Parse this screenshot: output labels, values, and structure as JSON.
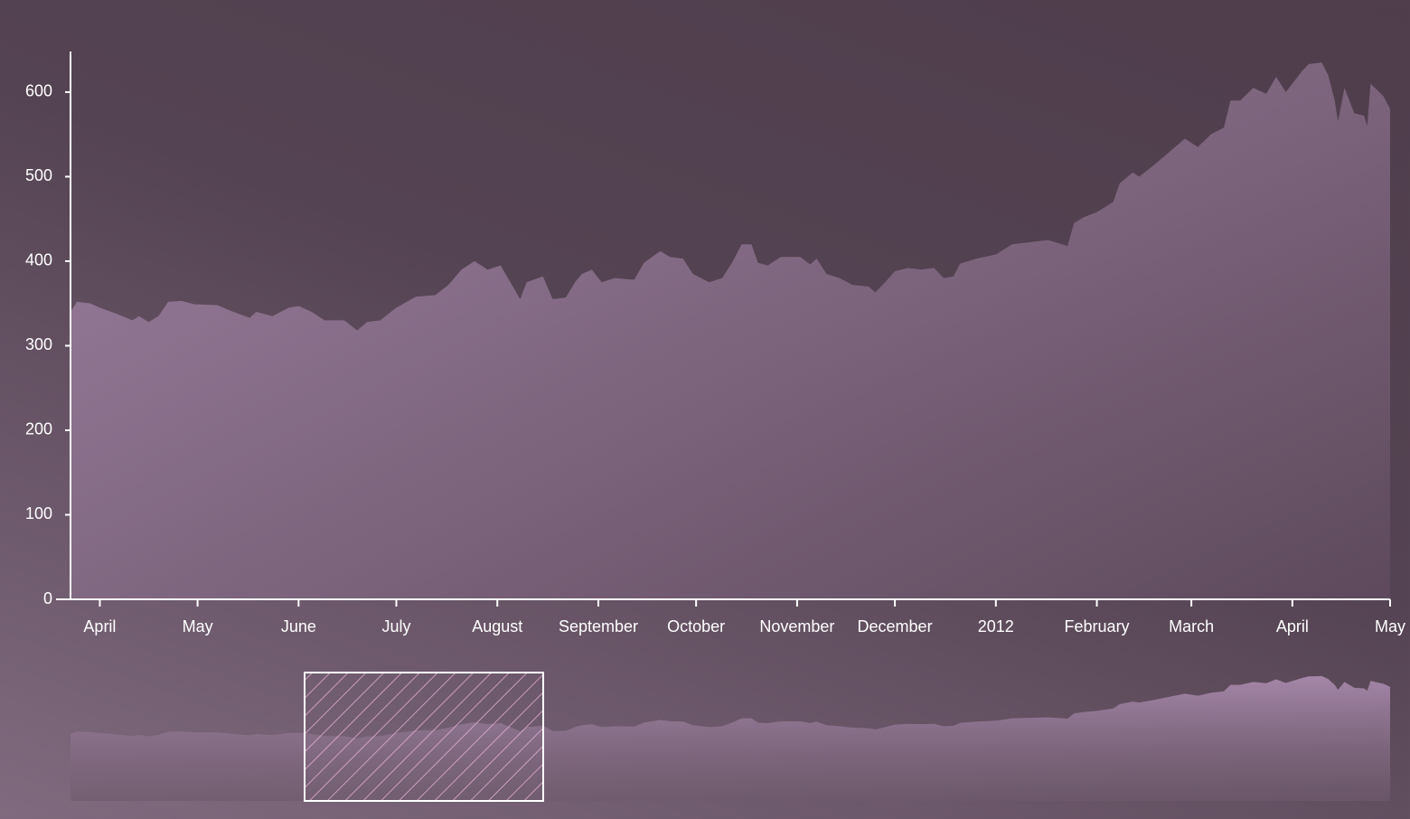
{
  "chart_data": {
    "type": "area",
    "x": [
      0,
      2,
      6,
      9,
      14,
      19,
      21,
      24,
      27,
      30,
      34,
      38,
      45,
      50,
      55,
      57,
      62,
      67,
      70,
      74,
      78,
      84,
      88,
      91,
      95,
      100,
      106,
      112,
      116,
      120,
      124,
      128,
      132,
      135,
      138,
      140,
      145,
      148,
      152,
      155,
      157,
      160,
      163,
      167,
      173,
      176,
      181,
      184,
      188,
      191,
      196,
      200,
      203,
      206,
      209,
      211,
      214,
      218,
      224,
      227,
      229,
      232,
      236,
      240,
      245,
      247,
      250,
      253,
      257,
      261,
      265,
      268,
      271,
      273,
      278,
      284,
      289,
      300,
      306,
      308,
      311,
      315,
      320,
      322,
      326,
      328,
      332,
      336,
      342,
      346,
      350,
      354,
      356,
      359,
      363,
      367,
      370,
      373,
      378,
      380,
      384,
      386,
      388,
      389,
      391,
      394,
      397,
      398,
      399,
      403,
      405
    ],
    "series": [
      {
        "color": "#a98aad",
        "values": [
          340,
          352,
          350,
          345,
          338,
          330,
          335,
          328,
          335,
          352,
          353,
          349,
          348,
          340,
          333,
          340,
          335,
          345,
          347,
          340,
          330,
          330,
          318,
          328,
          330,
          345,
          358,
          360,
          372,
          390,
          400,
          390,
          395,
          375,
          355,
          375,
          382,
          355,
          357,
          376,
          385,
          390,
          375,
          380,
          378,
          398,
          412,
          405,
          403,
          385,
          375,
          380,
          398,
          420,
          420,
          398,
          395,
          405,
          405,
          396,
          403,
          385,
          380,
          372,
          370,
          363,
          375,
          388,
          392,
          390,
          392,
          380,
          382,
          397,
          403,
          408,
          420,
          425,
          418,
          445,
          452,
          458,
          470,
          492,
          505,
          500,
          512,
          525,
          545,
          535,
          550,
          558,
          590,
          590,
          605,
          598,
          618,
          600,
          625,
          633,
          635,
          620,
          590,
          565,
          605,
          575,
          572,
          560,
          610,
          595,
          580
        ]
      }
    ],
    "xlim": [
      0,
      405
    ],
    "xticks": [
      {
        "value": 9,
        "label": "April"
      },
      {
        "value": 39,
        "label": "May"
      },
      {
        "value": 70,
        "label": "June"
      },
      {
        "value": 100,
        "label": "July"
      },
      {
        "value": 131,
        "label": "August"
      },
      {
        "value": 162,
        "label": "September"
      },
      {
        "value": 192,
        "label": "October"
      },
      {
        "value": 223,
        "label": "November"
      },
      {
        "value": 253,
        "label": "December"
      },
      {
        "value": 284,
        "label": "2012"
      },
      {
        "value": 315,
        "label": "February"
      },
      {
        "value": 344,
        "label": "March"
      },
      {
        "value": 375,
        "label": "April"
      },
      {
        "value": 405,
        "label": "May"
      }
    ],
    "ylim": [
      0,
      648
    ],
    "yticks": [
      0,
      100,
      200,
      300,
      400,
      500,
      600
    ]
  }
}
